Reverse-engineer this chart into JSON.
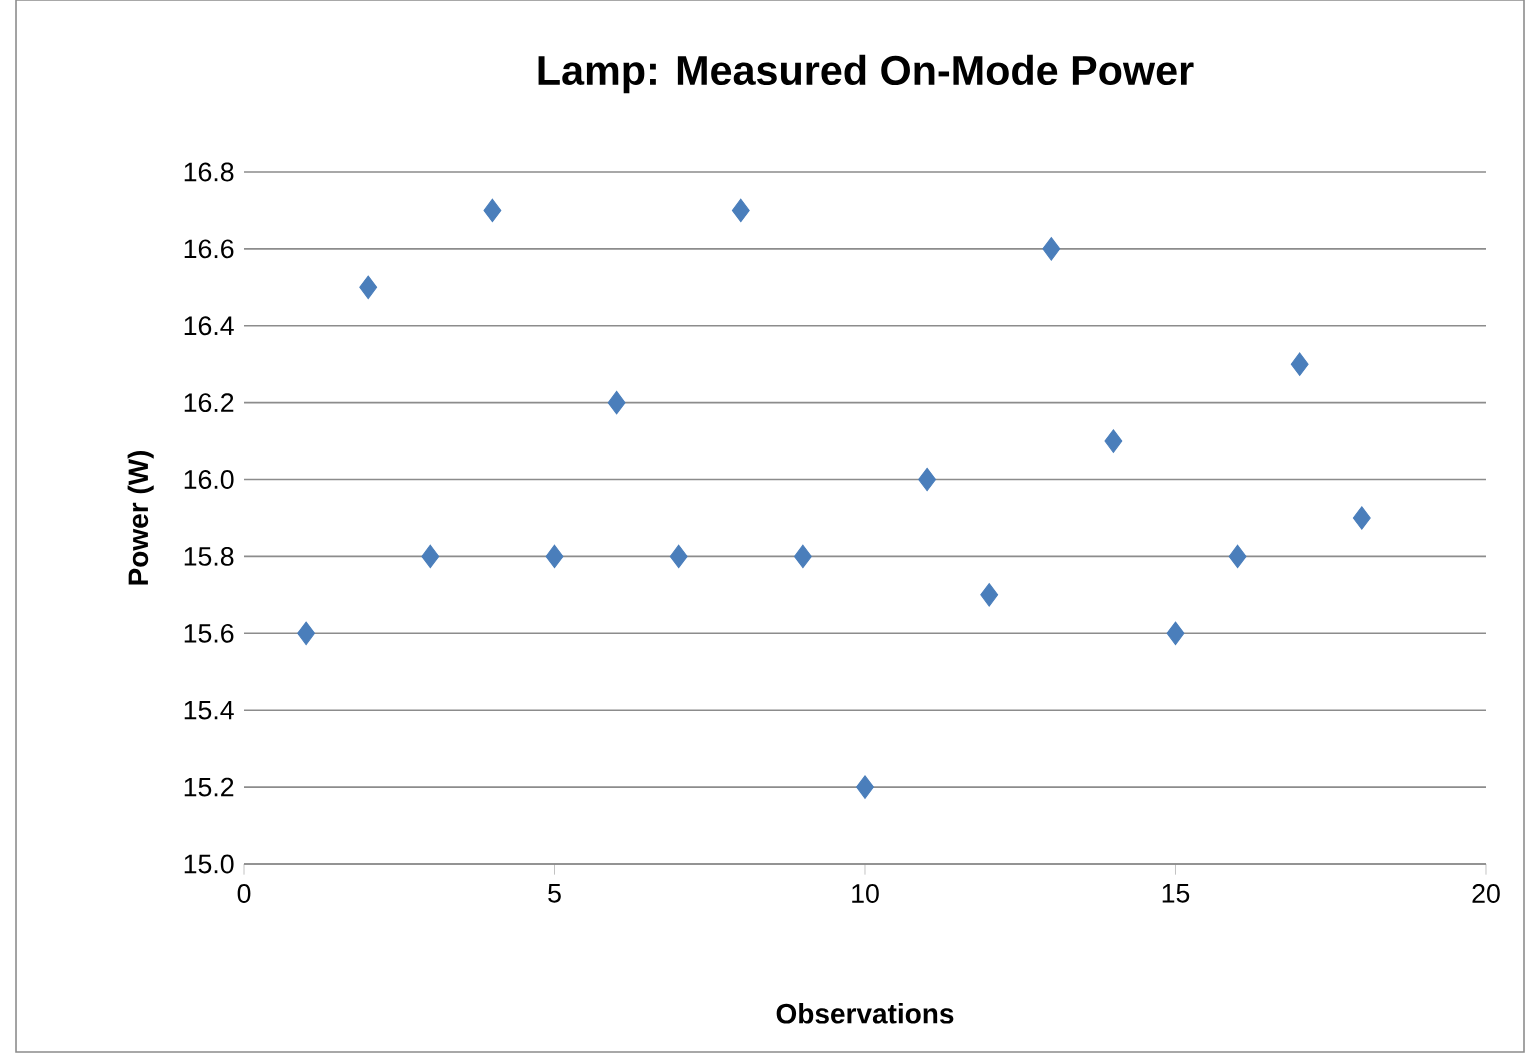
{
  "chart_data": {
    "type": "scatter",
    "title": "Lamp:  Measured On-Mode Power",
    "xlabel": "Observations",
    "ylabel": "Power (W)",
    "x": [
      1,
      2,
      3,
      4,
      5,
      6,
      7,
      8,
      9,
      10,
      11,
      12,
      13,
      14,
      15,
      16,
      17,
      18
    ],
    "series": [
      {
        "color": "#4a7ebb",
        "values": [
          15.6,
          16.5,
          15.8,
          16.7,
          15.8,
          16.2,
          15.8,
          16.7,
          15.8,
          15.2,
          16.0,
          15.7,
          16.6,
          16.1,
          15.6,
          15.8,
          16.3,
          15.9
        ]
      }
    ],
    "xlim": [
      0,
      20
    ],
    "xticks": [
      0,
      5,
      10,
      15,
      20
    ],
    "ylim": [
      15.0,
      16.8
    ],
    "yticks": [
      {
        "value": 15.0,
        "label": "15.0"
      },
      15.2,
      15.4,
      15.6,
      15.8,
      {
        "value": 16.0,
        "label": "16.0"
      },
      16.2,
      16.4,
      16.6,
      16.8
    ],
    "grid": "y",
    "marker": "diamond"
  }
}
